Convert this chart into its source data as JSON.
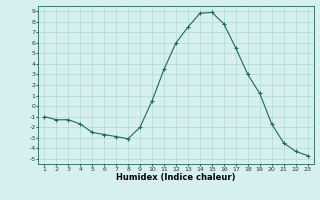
{
  "x": [
    1,
    2,
    3,
    4,
    5,
    6,
    7,
    8,
    9,
    10,
    11,
    12,
    13,
    14,
    15,
    16,
    17,
    18,
    19,
    20,
    21,
    22,
    23
  ],
  "y": [
    -1,
    -1.3,
    -1.3,
    -1.7,
    -2.5,
    -2.7,
    -2.9,
    -3.1,
    -2.0,
    0.5,
    3.5,
    6.0,
    7.5,
    8.8,
    8.9,
    7.8,
    5.5,
    3.0,
    1.2,
    -1.7,
    -3.5,
    -4.3,
    -4.7
  ],
  "line_color": "#1a6b5a",
  "marker": "+",
  "marker_size": 3,
  "linewidth": 0.8,
  "xlabel": "Humidex (Indice chaleur)",
  "xlim": [
    0.5,
    23.5
  ],
  "ylim": [
    -5.5,
    9.5
  ],
  "yticks": [
    -5,
    -4,
    -3,
    -2,
    -1,
    0,
    1,
    2,
    3,
    4,
    5,
    6,
    7,
    8,
    9
  ],
  "xticks": [
    1,
    2,
    3,
    4,
    5,
    6,
    7,
    8,
    9,
    10,
    11,
    12,
    13,
    14,
    15,
    16,
    17,
    18,
    19,
    20,
    21,
    22,
    23
  ],
  "bg_color": "#d6f0ef",
  "grid_color": "#b0d8d5",
  "xlabel_fontsize": 6.0,
  "tick_fontsize": 4.5,
  "markeredgewidth": 0.8
}
